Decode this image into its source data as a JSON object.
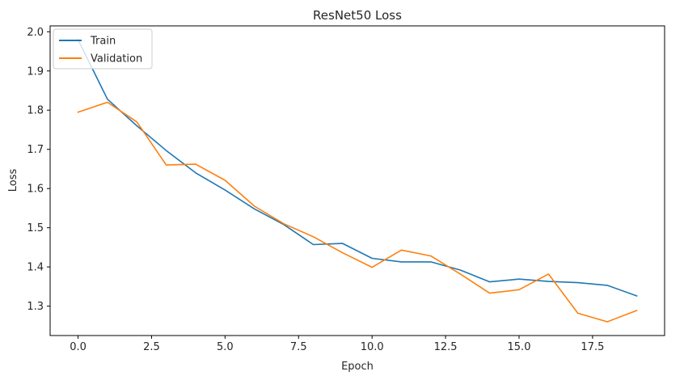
{
  "chart_data": {
    "type": "line",
    "title": "ResNet50 Loss",
    "xlabel": "Epoch",
    "ylabel": "Loss",
    "xlim": [
      -0.95,
      19.95
    ],
    "ylim": [
      1.225,
      2.015
    ],
    "xticks": [
      0.0,
      2.5,
      5.0,
      7.5,
      10.0,
      12.5,
      15.0,
      17.5
    ],
    "xtick_labels": [
      "0.0",
      "2.5",
      "5.0",
      "7.5",
      "10.0",
      "12.5",
      "15.0",
      "17.5"
    ],
    "yticks": [
      1.3,
      1.4,
      1.5,
      1.6,
      1.7,
      1.8,
      1.9,
      2.0
    ],
    "ytick_labels": [
      "1.3",
      "1.4",
      "1.5",
      "1.6",
      "1.7",
      "1.8",
      "1.9",
      "2.0"
    ],
    "grid": false,
    "legend_position": "top-left",
    "x": [
      0,
      1,
      2,
      3,
      4,
      5,
      6,
      7,
      8,
      9,
      10,
      11,
      12,
      13,
      14,
      15,
      16,
      17,
      18,
      19
    ],
    "series": [
      {
        "name": "Train",
        "color": "#1f77b4",
        "values": [
          1.98,
          1.828,
          1.76,
          1.697,
          1.64,
          1.596,
          1.548,
          1.508,
          1.457,
          1.46,
          1.422,
          1.413,
          1.413,
          1.392,
          1.362,
          1.369,
          1.363,
          1.36,
          1.353,
          1.326
        ]
      },
      {
        "name": "Validation",
        "color": "#ff7f0e",
        "values": [
          1.795,
          1.82,
          1.77,
          1.66,
          1.662,
          1.621,
          1.555,
          1.51,
          1.477,
          1.436,
          1.399,
          1.443,
          1.428,
          1.382,
          1.333,
          1.342,
          1.382,
          1.282,
          1.26,
          1.289
        ]
      }
    ]
  }
}
